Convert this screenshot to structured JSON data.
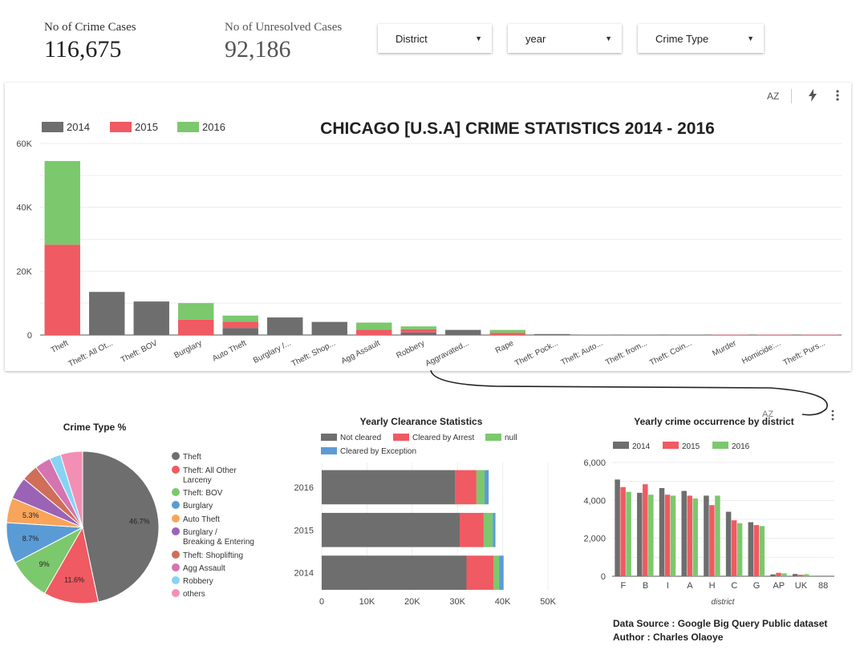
{
  "kpis": [
    {
      "label": "No of Crime Cases",
      "value": "116,675"
    },
    {
      "label": "No of Unresolved Cases",
      "value": "92,186"
    }
  ],
  "filters": [
    {
      "label": "District"
    },
    {
      "label": "year"
    },
    {
      "label": "Crime Type"
    }
  ],
  "toolbar": {
    "sort_icon": "sort-az-icon",
    "quick_icon": "lightning-icon",
    "menu_icon": "more-vertical-icon",
    "sort_label": "AZ"
  },
  "colors": {
    "y2014": "#6e6e6e",
    "y2015": "#f05a62",
    "y2016": "#7cc86d",
    "exception": "#5b9bd5"
  },
  "footer": {
    "source": "Data Source : Google Big Query Public dataset",
    "author": "Author : Charles Olaoye"
  },
  "chart_data": [
    {
      "type": "bar",
      "stacked": true,
      "title": "CHICAGO [U.S.A] CRIME STATISTICS 2014 - 2016",
      "legend_position": "top-left",
      "categories": [
        "Theft",
        "Theft: All Ot...",
        "Theft: BOV",
        "Burglary",
        "Auto Theft",
        "Burglary /...",
        "Theft: Shop...",
        "Agg Assault",
        "Robbery",
        "Aggravated...",
        "Rape",
        "Theft: Pock...",
        "Theft: Auto...",
        "Theft: from...",
        "Theft: Coin...",
        "Murder",
        "Homicide:...",
        "Theft: Purs..."
      ],
      "series": [
        {
          "name": "2014",
          "values": [
            0,
            13500,
            10500,
            0,
            2200,
            5500,
            4100,
            0,
            800,
            1600,
            0,
            300,
            100,
            100,
            100,
            0,
            0,
            0
          ]
        },
        {
          "name": "2015",
          "values": [
            28300,
            0,
            0,
            4800,
            2000,
            0,
            0,
            1700,
            1000,
            0,
            700,
            0,
            0,
            0,
            0,
            100,
            100,
            100
          ]
        },
        {
          "name": "2016",
          "values": [
            26200,
            0,
            0,
            5200,
            1900,
            0,
            0,
            2200,
            900,
            0,
            900,
            0,
            0,
            0,
            0,
            0,
            0,
            0
          ]
        }
      ],
      "ylim": [
        0,
        60000
      ],
      "yticks": [
        "0",
        "20K",
        "40K",
        "60K"
      ],
      "grid": true
    },
    {
      "type": "pie",
      "title": "Crime Type %",
      "legend_position": "right",
      "labels": [
        "Theft",
        "Theft: All Other Larceny",
        "Theft: BOV",
        "Burglary",
        "Auto Theft",
        "Burglary / Breaking & Entering",
        "Theft: Shoplifting",
        "Agg Assault",
        "Robbery",
        "others"
      ],
      "values": [
        46.7,
        11.6,
        9,
        8.7,
        5.3,
        4.7,
        3.5,
        3.4,
        2.4,
        4.7
      ],
      "colors": [
        "#6e6e6e",
        "#f05a62",
        "#7cc86d",
        "#5b9bd5",
        "#f8a45a",
        "#9b63b6",
        "#cf6e59",
        "#d474b0",
        "#86d3f5",
        "#f38fb5"
      ],
      "data_labels": [
        "46.7%",
        "11.6%",
        "9%",
        "8.7%",
        "5.3%",
        "",
        "",
        "",
        "",
        ""
      ]
    },
    {
      "type": "bar",
      "orientation": "horizontal",
      "stacked": true,
      "title": "Yearly Clearance Statistics",
      "legend_position": "top",
      "categories": [
        "2016",
        "2015",
        "2014"
      ],
      "series": [
        {
          "name": "Not cleared",
          "values": [
            29500,
            30500,
            32000
          ]
        },
        {
          "name": "Cleared by Arrest",
          "values": [
            4700,
            5300,
            6000
          ]
        },
        {
          "name": "null",
          "values": [
            1800,
            2000,
            1200
          ]
        },
        {
          "name": "Cleared by Exception",
          "values": [
            900,
            600,
            1000
          ]
        }
      ],
      "xlim": [
        0,
        50000
      ],
      "xticks": [
        "0",
        "10K",
        "20K",
        "30K",
        "40K",
        "50K"
      ],
      "grid": true
    },
    {
      "type": "bar",
      "title": "Yearly crime occurrence by district",
      "xlabel": "district",
      "legend_position": "top-left",
      "categories": [
        "F",
        "B",
        "I",
        "A",
        "H",
        "C",
        "G",
        "AP",
        "UK",
        "88"
      ],
      "series": [
        {
          "name": "2014",
          "values": [
            5100,
            4400,
            4650,
            4500,
            4250,
            3400,
            2850,
            100,
            120,
            0
          ]
        },
        {
          "name": "2015",
          "values": [
            4700,
            4850,
            4300,
            4250,
            3750,
            2950,
            2700,
            180,
            80,
            0
          ]
        },
        {
          "name": "2016",
          "values": [
            4450,
            4300,
            4250,
            4100,
            4250,
            2800,
            2650,
            150,
            110,
            0
          ]
        }
      ],
      "ylim": [
        0,
        6000
      ],
      "yticks": [
        "0",
        "2,000",
        "4,000",
        "6,000"
      ],
      "grid": true
    }
  ]
}
